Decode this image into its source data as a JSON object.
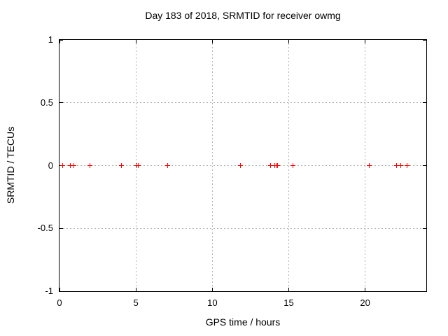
{
  "colors": {
    "background": "#ffffff",
    "axis": "#000000",
    "text": "#000000",
    "grid": "#b0b0b0",
    "marker": "#ff0000"
  },
  "chart_data": {
    "type": "scatter",
    "title": "Day 183 of 2018, SRMTID for receiver owmg",
    "xlabel": "GPS time / hours",
    "ylabel": "SRMTID / TECUs",
    "xlim": [
      0,
      24
    ],
    "ylim": [
      -1,
      1
    ],
    "x_tick_values": [
      0,
      5,
      10,
      15,
      20
    ],
    "x_tick_labels": [
      "0",
      "5",
      "10",
      "15",
      "20"
    ],
    "y_tick_values": [
      1,
      0.5,
      0,
      -0.5,
      -1
    ],
    "y_tick_labels": [
      "1",
      "0.5",
      "0",
      "-0.5",
      "-1"
    ],
    "grid": true,
    "legend": "none",
    "marker_style": "plus",
    "series": [
      {
        "name": "SRMTID",
        "x": [
          0.2,
          0.72,
          0.96,
          1.98,
          4.04,
          5.04,
          5.14,
          7.07,
          11.83,
          13.82,
          14.07,
          14.18,
          14.27,
          15.26,
          20.26,
          22.06,
          22.32,
          22.75
        ],
        "y": [
          0,
          0,
          0,
          0,
          0,
          0,
          0,
          0,
          0,
          0,
          0,
          0,
          0,
          0,
          0,
          0,
          0,
          0
        ]
      }
    ]
  }
}
